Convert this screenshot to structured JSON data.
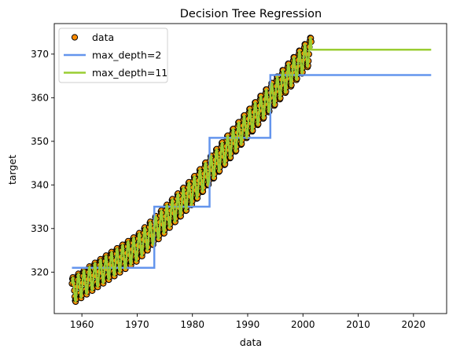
{
  "chart_data": {
    "type": "scatter",
    "title": "Decision Tree Regression",
    "xlabel": "data",
    "ylabel": "target",
    "xlim": [
      1955,
      2026
    ],
    "ylim": [
      310.5,
      377
    ],
    "x_ticks": [
      1960,
      1970,
      1980,
      1990,
      2000,
      2010,
      2020
    ],
    "y_ticks": [
      320,
      330,
      340,
      350,
      360,
      370
    ],
    "legend_position": "upper-left",
    "colors": {
      "data_fill": "#ff8c00",
      "data_edge": "#000000",
      "depth2": "#6495ed",
      "depth11": "#9acd32"
    },
    "scatter": {
      "name": "data",
      "x_start": 1958.2,
      "x_end": 2001.5,
      "n_points": 520,
      "approx_trend": [
        [
          1958,
          315.5
        ],
        [
          1970,
          325.5
        ],
        [
          1980,
          338.5
        ],
        [
          1990,
          354.0
        ],
        [
          2001.5,
          371.0
        ]
      ],
      "seasonal_amplitude": 3.0
    },
    "series": [
      {
        "name": "max_depth=2",
        "type": "step",
        "steps": [
          {
            "x0": 1958.2,
            "x1": 1973.1,
            "y": 321.0
          },
          {
            "x0": 1973.1,
            "x1": 1983.1,
            "y": 335.0
          },
          {
            "x0": 1983.1,
            "x1": 1994.1,
            "y": 350.8
          },
          {
            "x0": 1994.1,
            "x1": 2023.2,
            "y": 365.2
          }
        ]
      },
      {
        "name": "max_depth=11",
        "type": "line",
        "x_end_fit": 2001.5,
        "flat_from": 2001.5,
        "flat_to": 2023.2,
        "flat_value": 371.0
      }
    ]
  }
}
